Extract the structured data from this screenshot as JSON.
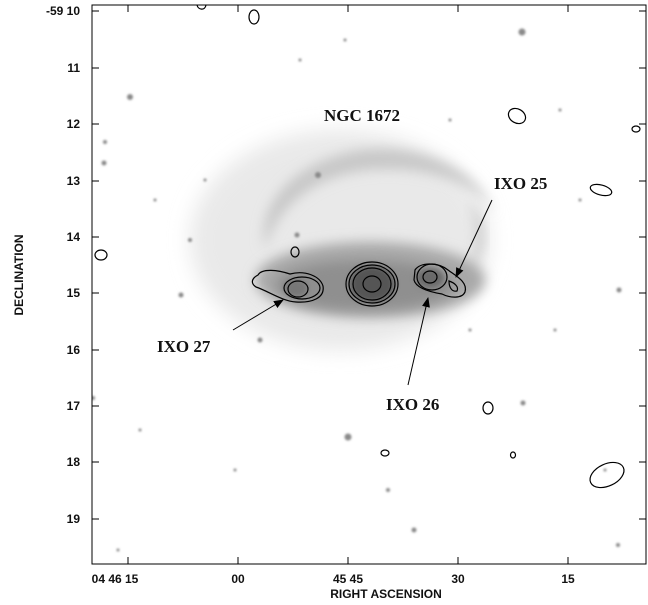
{
  "figure": {
    "object_label": "NGC 1672",
    "xlabel": "RIGHT ASCENSION",
    "ylabel": "DECLINATION",
    "x_ticks": [
      {
        "label": "04 46 15",
        "ra_sec": 75
      },
      {
        "label": "00",
        "ra_sec": 60
      },
      {
        "label": "45 45",
        "ra_sec": 45
      },
      {
        "label": "30",
        "ra_sec": 30
      },
      {
        "label": "15",
        "ra_sec": 15
      }
    ],
    "y_ticks": [
      {
        "label": "-59 10",
        "dec_min": 10
      },
      {
        "label": "11",
        "dec_min": 11
      },
      {
        "label": "12",
        "dec_min": 12
      },
      {
        "label": "13",
        "dec_min": 13
      },
      {
        "label": "14",
        "dec_min": 14
      },
      {
        "label": "15",
        "dec_min": 15
      },
      {
        "label": "16",
        "dec_min": 16
      },
      {
        "label": "17",
        "dec_min": 17
      },
      {
        "label": "18",
        "dec_min": 18
      },
      {
        "label": "19",
        "dec_min": 19
      }
    ],
    "sources": [
      {
        "label": "IXO 25"
      },
      {
        "label": "IXO 26"
      },
      {
        "label": "IXO 27"
      }
    ]
  }
}
